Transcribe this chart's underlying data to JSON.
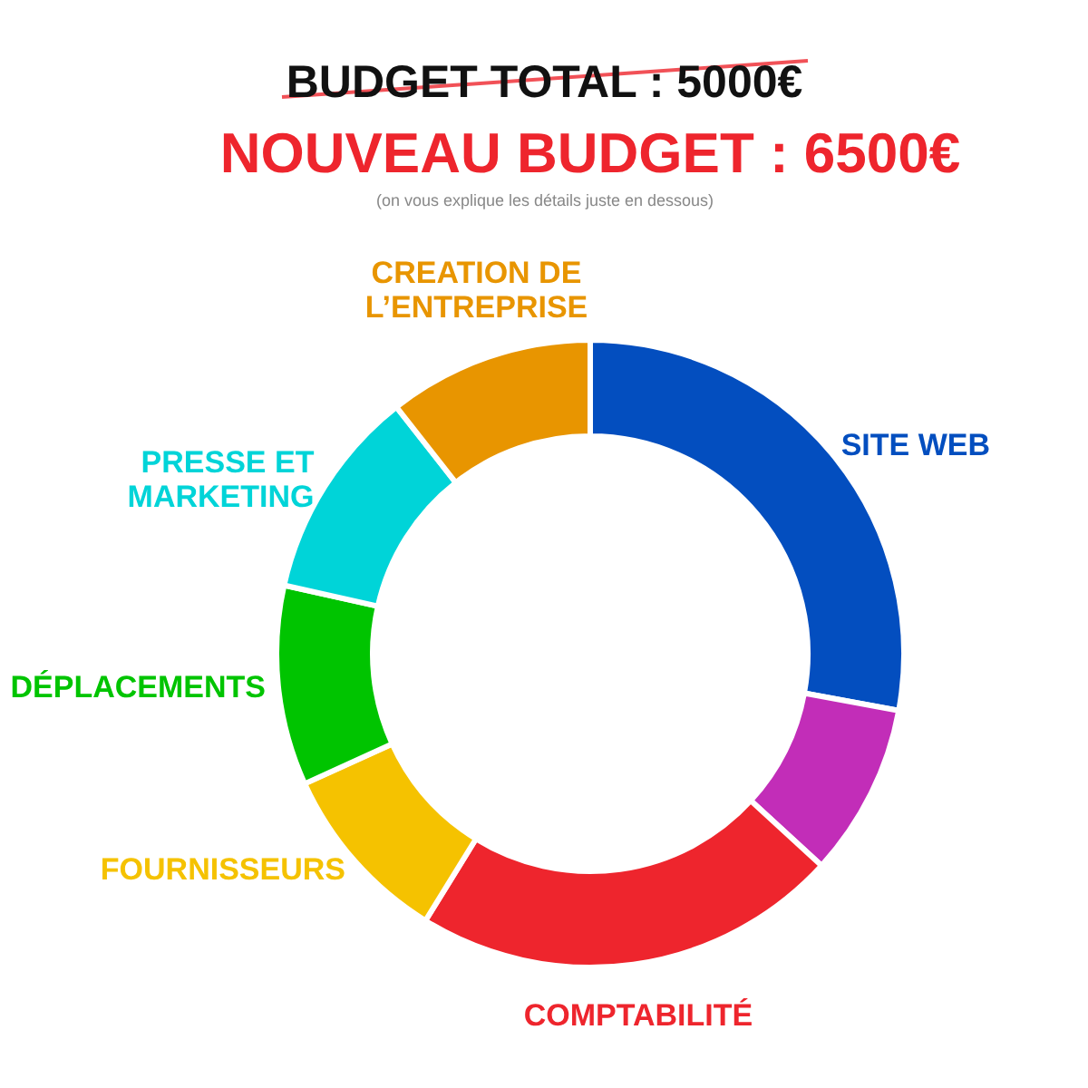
{
  "chart_data": {
    "type": "donut",
    "title": "BUDGET TOTAL : 5000€",
    "subtitle": "NOUVEAU BUDGET : 6500€",
    "annotations": [
      "(on vous explique les détails juste en dessous)"
    ],
    "categories": [
      "SITE WEB",
      null,
      "COMPTABILITÉ",
      "FOURNISSEURS",
      "DÉPLACEMENTS",
      "PRESSE ET MARKETING",
      "CREATION DE L’ENTREPRISE"
    ],
    "values": [
      27.9,
      8.9,
      22.0,
      9.4,
      10.3,
      10.9,
      10.6
    ],
    "colors": [
      "#034ebf",
      "#c22db8",
      "#ee252d",
      "#f5c200",
      "#00c400",
      "#00d4d8",
      "#e89500"
    ]
  }
}
